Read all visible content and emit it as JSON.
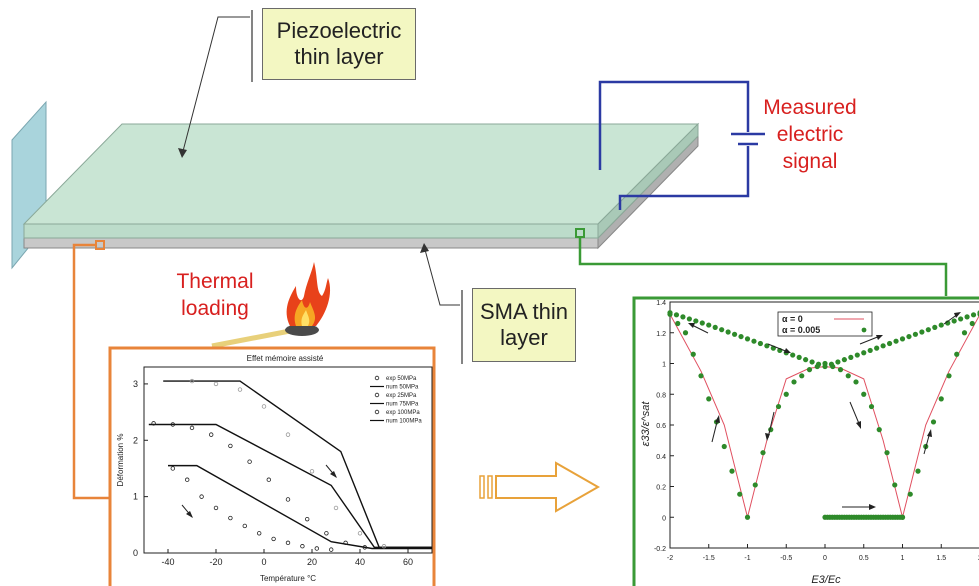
{
  "labels": {
    "piezo": [
      "Piezoelectric",
      "thin layer"
    ],
    "sma": [
      "SMA thin",
      "layer"
    ],
    "measured": [
      "Measured",
      "electric",
      "signal"
    ],
    "thermal": [
      "Thermal",
      "loading"
    ]
  },
  "colors": {
    "piezo_layer": "#c9e5d4",
    "sma_layer": "#c8c8c8",
    "clamp": "#a9d4dc",
    "circuit": "#2b3aa3",
    "orange": "#e8843a",
    "green": "#3a9a36",
    "callout_fill": "#f3f7c2",
    "label_red": "#d8201f"
  },
  "icons": [
    "fire-icon",
    "hollow-arrow-right-icon"
  ],
  "chart_data": [
    {
      "type": "line",
      "title": "Effet mémoire assisté",
      "xlabel": "Température °C",
      "ylabel": "Déformation %",
      "xlim": [
        -50,
        70
      ],
      "ylim": [
        0,
        3.3
      ],
      "xticks": [
        "-40",
        "-20",
        "0",
        "20",
        "40",
        "60"
      ],
      "yticks": [
        "0",
        "1",
        "2",
        "3"
      ],
      "legend_position": "top-right",
      "legend": [
        "exp 50MPa",
        "num 50MPa",
        "exp 25MPa",
        "num 75MPa",
        "exp 100MPa",
        "num 100MPa"
      ],
      "series": [
        {
          "name": "num 50MPa",
          "x": [
            -40,
            -28,
            28,
            45,
            70
          ],
          "y": [
            1.55,
            1.55,
            0.2,
            0.08,
            0.08
          ]
        },
        {
          "name": "num 75MPa",
          "x": [
            -48,
            -20,
            28,
            46,
            70
          ],
          "y": [
            2.28,
            2.28,
            1.2,
            0.1,
            0.1
          ]
        },
        {
          "name": "num 100MPa",
          "x": [
            -42,
            -10,
            32,
            48,
            70
          ],
          "y": [
            3.05,
            3.05,
            1.8,
            0.1,
            0.1
          ]
        },
        {
          "name": "exp 50MPa",
          "x": [
            -38,
            -32,
            -26,
            -20,
            -14,
            -8,
            -2,
            4,
            10,
            16,
            22,
            28
          ],
          "y": [
            1.5,
            1.3,
            1.0,
            0.8,
            0.62,
            0.48,
            0.35,
            0.25,
            0.18,
            0.12,
            0.08,
            0.06
          ]
        },
        {
          "name": "exp 25MPa",
          "x": [
            -46,
            -38,
            -30,
            -22,
            -14,
            -6,
            2,
            10,
            18,
            26,
            34,
            42
          ],
          "y": [
            2.3,
            2.28,
            2.22,
            2.1,
            1.9,
            1.62,
            1.3,
            0.95,
            0.6,
            0.35,
            0.18,
            0.1
          ]
        },
        {
          "name": "exp 100MPa",
          "x": [
            -30,
            -20,
            -10,
            0,
            10,
            20,
            30,
            40,
            50
          ],
          "y": [
            3.05,
            3.0,
            2.9,
            2.6,
            2.1,
            1.45,
            0.8,
            0.35,
            0.12
          ]
        }
      ]
    },
    {
      "type": "line",
      "title": "",
      "xlabel": "E3/Ec",
      "ylabel": "ε33/ε^sat",
      "xlim": [
        -2,
        2
      ],
      "ylim": [
        -0.2,
        1.4
      ],
      "xticks": [
        "-2",
        "-1.5",
        "-1",
        "-0.5",
        "0",
        "0.5",
        "1",
        "1.5",
        "2"
      ],
      "yticks": [
        "-0.2",
        "0",
        "0.2",
        "0.4",
        "0.6",
        "0.8",
        "1",
        "1.2",
        "1.4"
      ],
      "legend_position": "top-center",
      "legend": [
        "α = 0",
        "α = 0.005"
      ],
      "series": [
        {
          "name": "α = 0",
          "x": [
            -2,
            -1.6,
            -1.3,
            -1,
            -0.75,
            -0.5,
            -0.2,
            0,
            0.2,
            0.5,
            0.75,
            1,
            1.3,
            1.6,
            2
          ],
          "y": [
            1.32,
            0.95,
            0.6,
            0,
            0.5,
            0.9,
            0.97,
            0.98,
            0.97,
            0.9,
            0.5,
            0,
            0.6,
            0.95,
            1.32
          ]
        },
        {
          "name": "α = 0.005",
          "x": [
            -2,
            -1.8,
            -1.6,
            -1.4,
            -1.2,
            -1,
            -0.8,
            -0.6,
            -0.4,
            -0.2,
            0,
            0.2,
            0.4,
            0.6,
            0.8,
            1,
            1.2,
            1.4,
            1.6,
            1.8,
            2
          ],
          "y": [
            1.32,
            1.2,
            0.92,
            0.62,
            0.3,
            0,
            0.42,
            0.72,
            0.88,
            0.96,
            1.0,
            0.96,
            0.88,
            0.72,
            0.42,
            0,
            0.3,
            0.62,
            0.92,
            1.2,
            1.32
          ]
        },
        {
          "name": "α = 0.005 sweep",
          "x": [
            -2,
            -1.5,
            -1,
            -0.5,
            0,
            0.5,
            1,
            1.5,
            2
          ],
          "y": [
            1.33,
            1.25,
            1.16,
            1.07,
            0.98,
            1.07,
            1.16,
            1.25,
            1.33
          ]
        },
        {
          "name": "α = 0.005 base",
          "x": [
            0,
            0.25,
            0.5,
            0.75,
            1
          ],
          "y": [
            0,
            0,
            0,
            0,
            0
          ]
        }
      ]
    }
  ]
}
